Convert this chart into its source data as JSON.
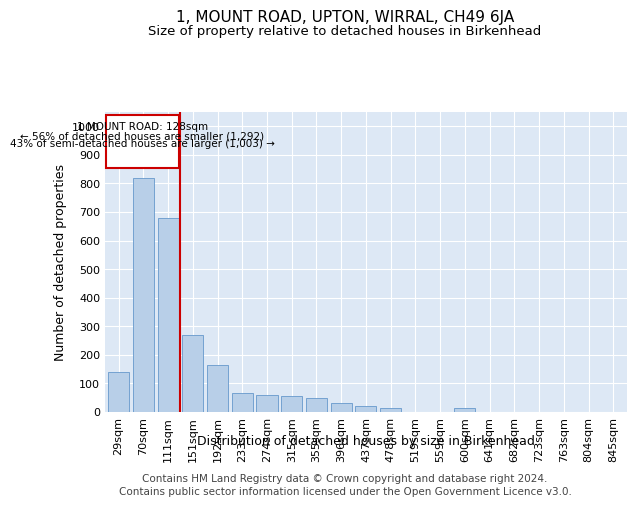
{
  "title": "1, MOUNT ROAD, UPTON, WIRRAL, CH49 6JA",
  "subtitle": "Size of property relative to detached houses in Birkenhead",
  "xlabel": "Distribution of detached houses by size in Birkenhead",
  "ylabel": "Number of detached properties",
  "footer_line1": "Contains HM Land Registry data © Crown copyright and database right 2024.",
  "footer_line2": "Contains public sector information licensed under the Open Government Licence v3.0.",
  "categories": [
    "29sqm",
    "70sqm",
    "111sqm",
    "151sqm",
    "192sqm",
    "233sqm",
    "274sqm",
    "315sqm",
    "355sqm",
    "396sqm",
    "437sqm",
    "478sqm",
    "519sqm",
    "559sqm",
    "600sqm",
    "641sqm",
    "682sqm",
    "723sqm",
    "763sqm",
    "804sqm",
    "845sqm"
  ],
  "values": [
    140,
    820,
    680,
    270,
    165,
    65,
    60,
    55,
    50,
    30,
    20,
    15,
    0,
    0,
    15,
    0,
    0,
    0,
    0,
    0,
    0
  ],
  "bar_color": "#b8cfe8",
  "bar_edge_color": "#6699cc",
  "annotation_text_line1": "1 MOUNT ROAD: 128sqm",
  "annotation_text_line2": "← 56% of detached houses are smaller (1,292)",
  "annotation_text_line3": "43% of semi-detached houses are larger (1,003) →",
  "annotation_color": "#cc0000",
  "ylim": [
    0,
    1050
  ],
  "yticks": [
    0,
    100,
    200,
    300,
    400,
    500,
    600,
    700,
    800,
    900,
    1000
  ],
  "background_color": "#dde8f5",
  "grid_color": "#ffffff",
  "title_fontsize": 11,
  "subtitle_fontsize": 9.5,
  "axis_label_fontsize": 9,
  "tick_fontsize": 8,
  "footer_fontsize": 7.5,
  "red_line_bar_index": 2,
  "bar_width": 0.85
}
